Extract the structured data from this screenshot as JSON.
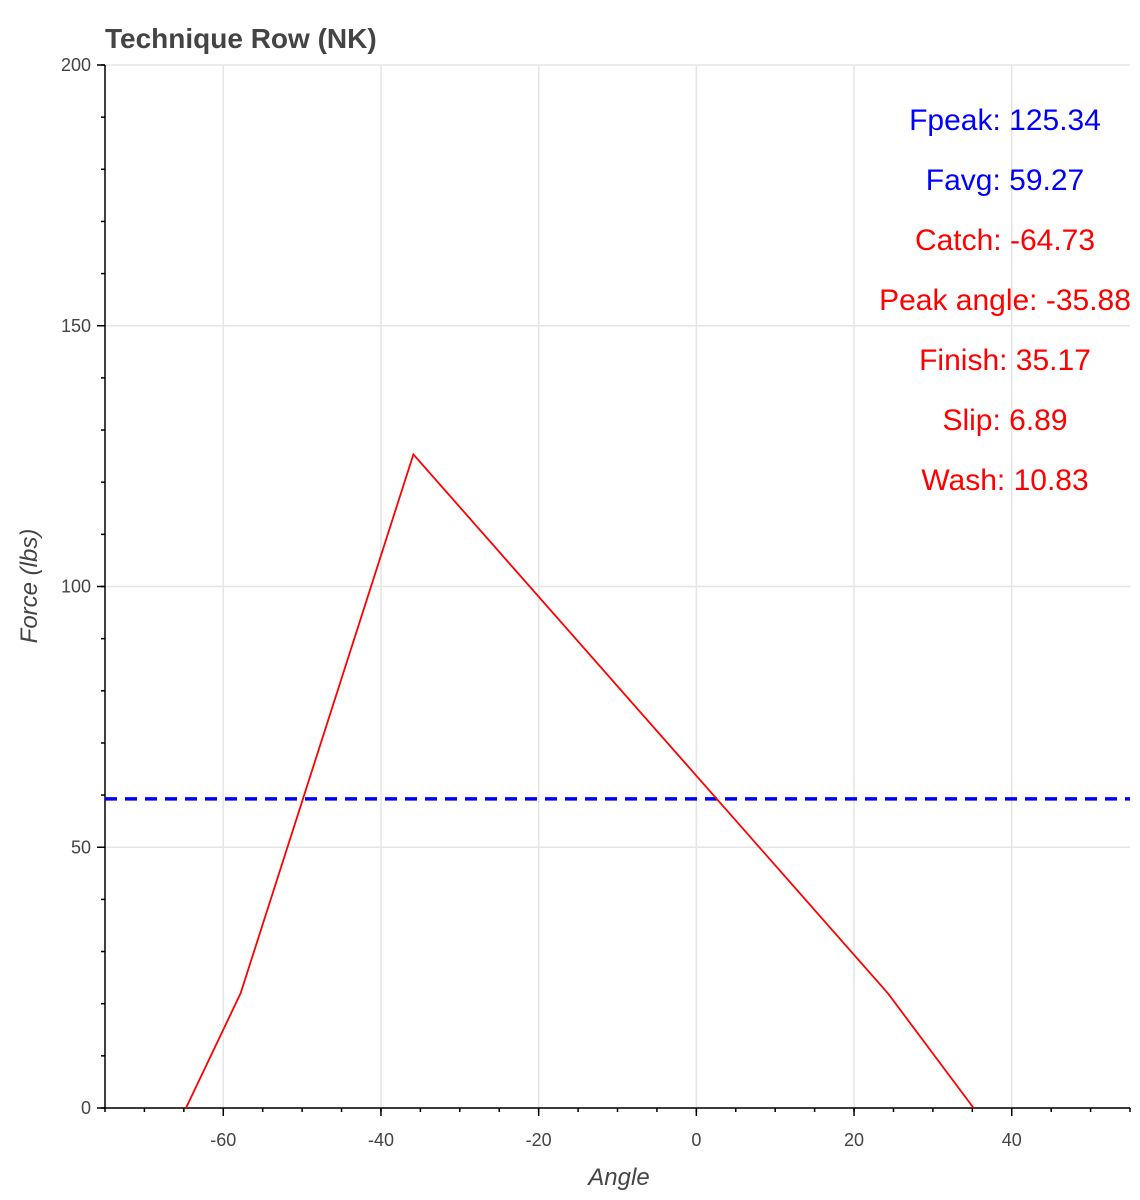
{
  "chart_data": {
    "type": "line",
    "title": "Technique Row (NK)",
    "xlabel": "Angle",
    "ylabel": "Force (lbs)",
    "xlim": [
      -75,
      55
    ],
    "ylim": [
      0,
      200
    ],
    "x_ticks": [
      -60,
      -40,
      -20,
      0,
      20,
      40
    ],
    "y_ticks": [
      0,
      50,
      100,
      150,
      200
    ],
    "grid": true,
    "series": [
      {
        "color": "#ff0000",
        "style": "solid",
        "x": [
          -64.73,
          -57.8,
          -35.88,
          24.3,
          35.17
        ],
        "y": [
          0,
          22,
          125.34,
          22,
          0
        ]
      }
    ],
    "reference_lines": [
      {
        "axis": "y",
        "value": 59.27,
        "color": "#0000ff",
        "style": "dashed"
      }
    ],
    "annotations": [
      {
        "text": "Fpeak: 125.34",
        "color": "#0000ff"
      },
      {
        "text": "Favg: 59.27",
        "color": "#0000ff"
      },
      {
        "text": "Catch: -64.73",
        "color": "#ff0000"
      },
      {
        "text": "Peak angle: -35.88",
        "color": "#ff0000"
      },
      {
        "text": "Finish: 35.17",
        "color": "#ff0000"
      },
      {
        "text": "Slip: 6.89",
        "color": "#ff0000"
      },
      {
        "text": "Wash: 10.83",
        "color": "#ff0000"
      }
    ]
  }
}
